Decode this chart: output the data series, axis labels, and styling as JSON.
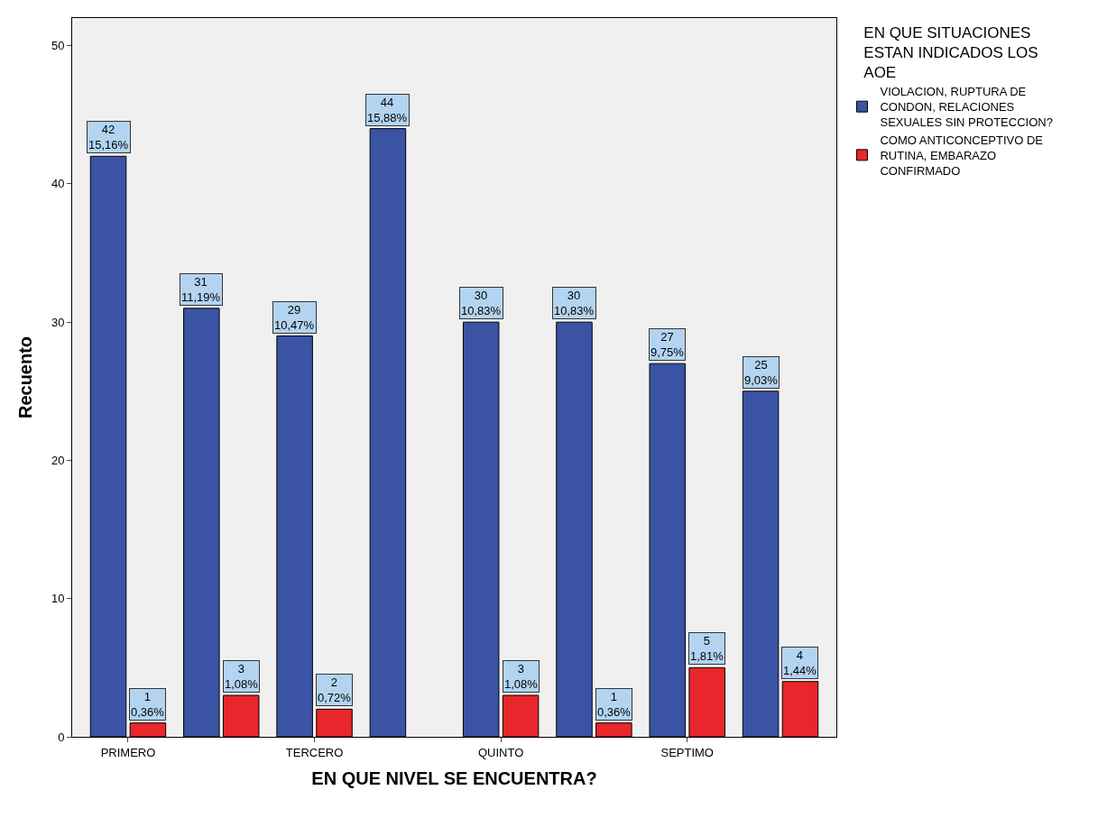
{
  "chart_data": {
    "type": "bar",
    "xlabel": "EN QUE NIVEL SE ENCUENTRA?",
    "ylabel": "Recuento",
    "legend_title": "EN QUE SITUACIONES ESTAN INDICADOS LOS AOE",
    "categories": [
      "PRIMERO",
      null,
      "TERCERO",
      null,
      "QUINTO",
      null,
      "SEPTIMO",
      null
    ],
    "series": [
      {
        "name": "VIOLACION, RUPTURA DE CONDON, RELACIONES SEXUALES SIN PROTECCION?",
        "color": "#3a53a4",
        "values": [
          42,
          31,
          29,
          44,
          30,
          30,
          27,
          25
        ],
        "value_labels": [
          "42\n15,16%",
          "31\n11,19%",
          "29\n10,47%",
          "44\n15,88%",
          "30\n10,83%",
          "30\n10,83%",
          "27\n9,75%",
          "25\n9,03%"
        ]
      },
      {
        "name": "COMO ANTICONCEPTIVO DE RUTINA, EMBARAZO CONFIRMADO",
        "color": "#e8262c",
        "values": [
          1,
          3,
          2,
          null,
          3,
          1,
          5,
          4
        ],
        "value_labels": [
          "1\n0,36%",
          "3\n1,08%",
          "2\n0,72%",
          null,
          "3\n1,08%",
          "1\n0,36%",
          "5\n1,81%",
          "4\n1,44%"
        ]
      }
    ],
    "ylim": [
      0,
      52
    ],
    "yticks": [
      0,
      10,
      20,
      30,
      40,
      50
    ],
    "grid": false,
    "legend": "top right"
  }
}
